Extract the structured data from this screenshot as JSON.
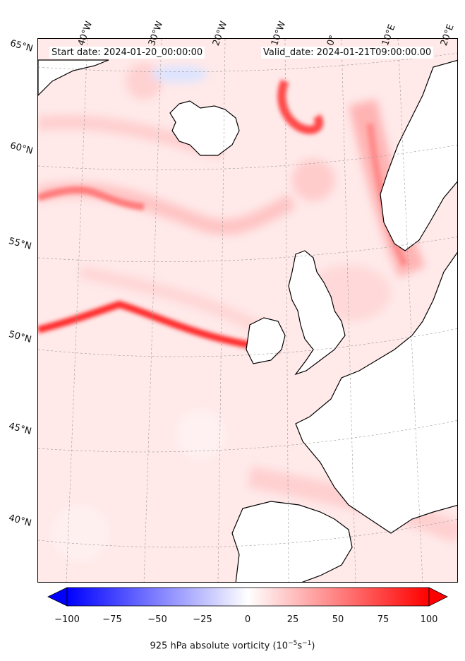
{
  "map": {
    "start_date": "Start date: 2024-01-20_00:00:00",
    "valid_date": "Valid_date: 2024-01-21T09:00:00.00",
    "lon_labels": [
      "40°W",
      "30°W",
      "20°W",
      "10°W",
      "0°",
      "10°E",
      "20°E"
    ],
    "lat_labels": [
      "65°N",
      "60°N",
      "55°N",
      "50°N",
      "45°N",
      "40°N"
    ],
    "colorbar": {
      "ticks": [
        "−100",
        "−75",
        "−50",
        "−25",
        "0",
        "25",
        "50",
        "75",
        "100"
      ],
      "label": "925 hPa absolute vorticity (10",
      "label_exp1": "−5",
      "label_mid": "s",
      "label_exp2": "−1",
      "label_end": ")",
      "range": [
        -100,
        100
      ],
      "colors": {
        "min": "#0000ff",
        "mid": "#ffffff",
        "max": "#ff0000"
      }
    },
    "colors": {
      "land": "#ffffff",
      "background_field": "#ffe6e6",
      "coastline": "#000000"
    }
  }
}
